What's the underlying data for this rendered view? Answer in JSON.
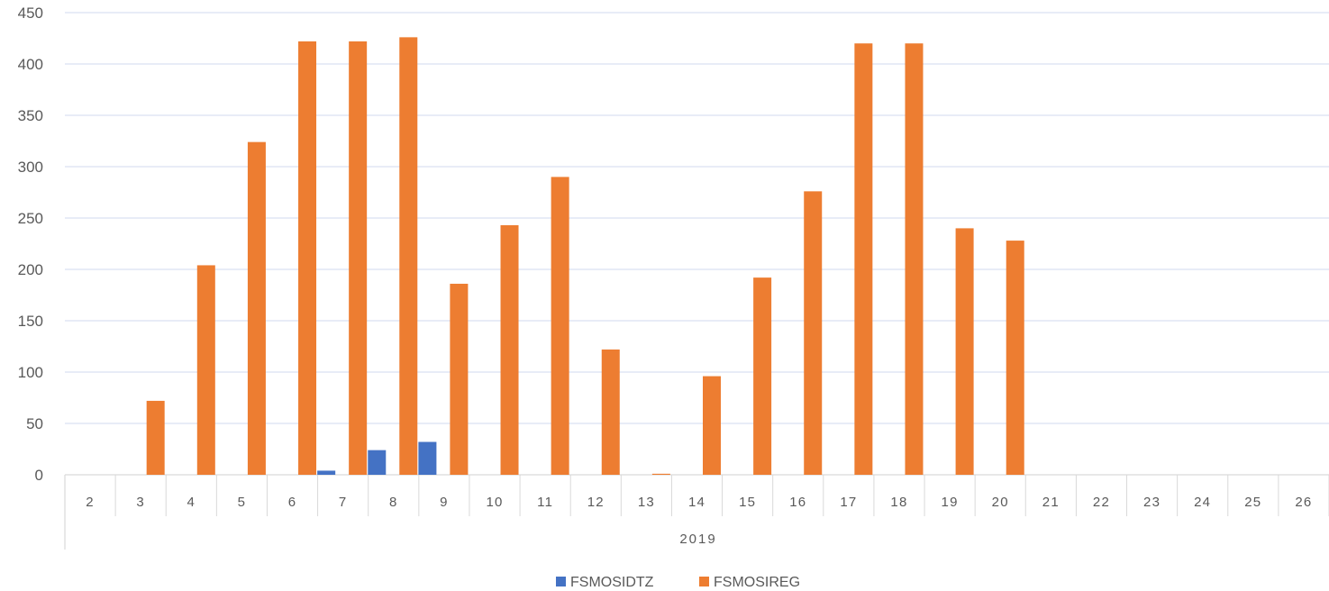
{
  "chart_data": {
    "type": "bar",
    "title": "",
    "xlabel": "",
    "ylabel": "",
    "ylim": [
      0,
      450
    ],
    "yticks": [
      0,
      50,
      100,
      150,
      200,
      250,
      300,
      350,
      400,
      450
    ],
    "grid": true,
    "legend_position": "bottom",
    "group_label": "2019",
    "categories": [
      "2",
      "3",
      "4",
      "5",
      "6",
      "7",
      "8",
      "9",
      "10",
      "11",
      "12",
      "13",
      "14",
      "15",
      "16",
      "17",
      "18",
      "19",
      "20",
      "21",
      "22",
      "23",
      "24",
      "25",
      "26"
    ],
    "series": [
      {
        "name": "FSMOSIDTZ",
        "color": "#4472c4",
        "values": [
          0,
          0,
          0,
          0,
          0,
          4,
          24,
          32,
          0,
          0,
          0,
          0,
          0,
          0,
          0,
          0,
          0,
          0,
          0,
          0,
          0,
          0,
          0,
          0,
          0
        ]
      },
      {
        "name": "FSMOSIREG",
        "color": "#ed7d31",
        "values": [
          0,
          72,
          204,
          324,
          422,
          422,
          426,
          186,
          243,
          290,
          122,
          1,
          96,
          192,
          276,
          420,
          420,
          240,
          228,
          0,
          0,
          0,
          0,
          0,
          0
        ]
      }
    ]
  }
}
